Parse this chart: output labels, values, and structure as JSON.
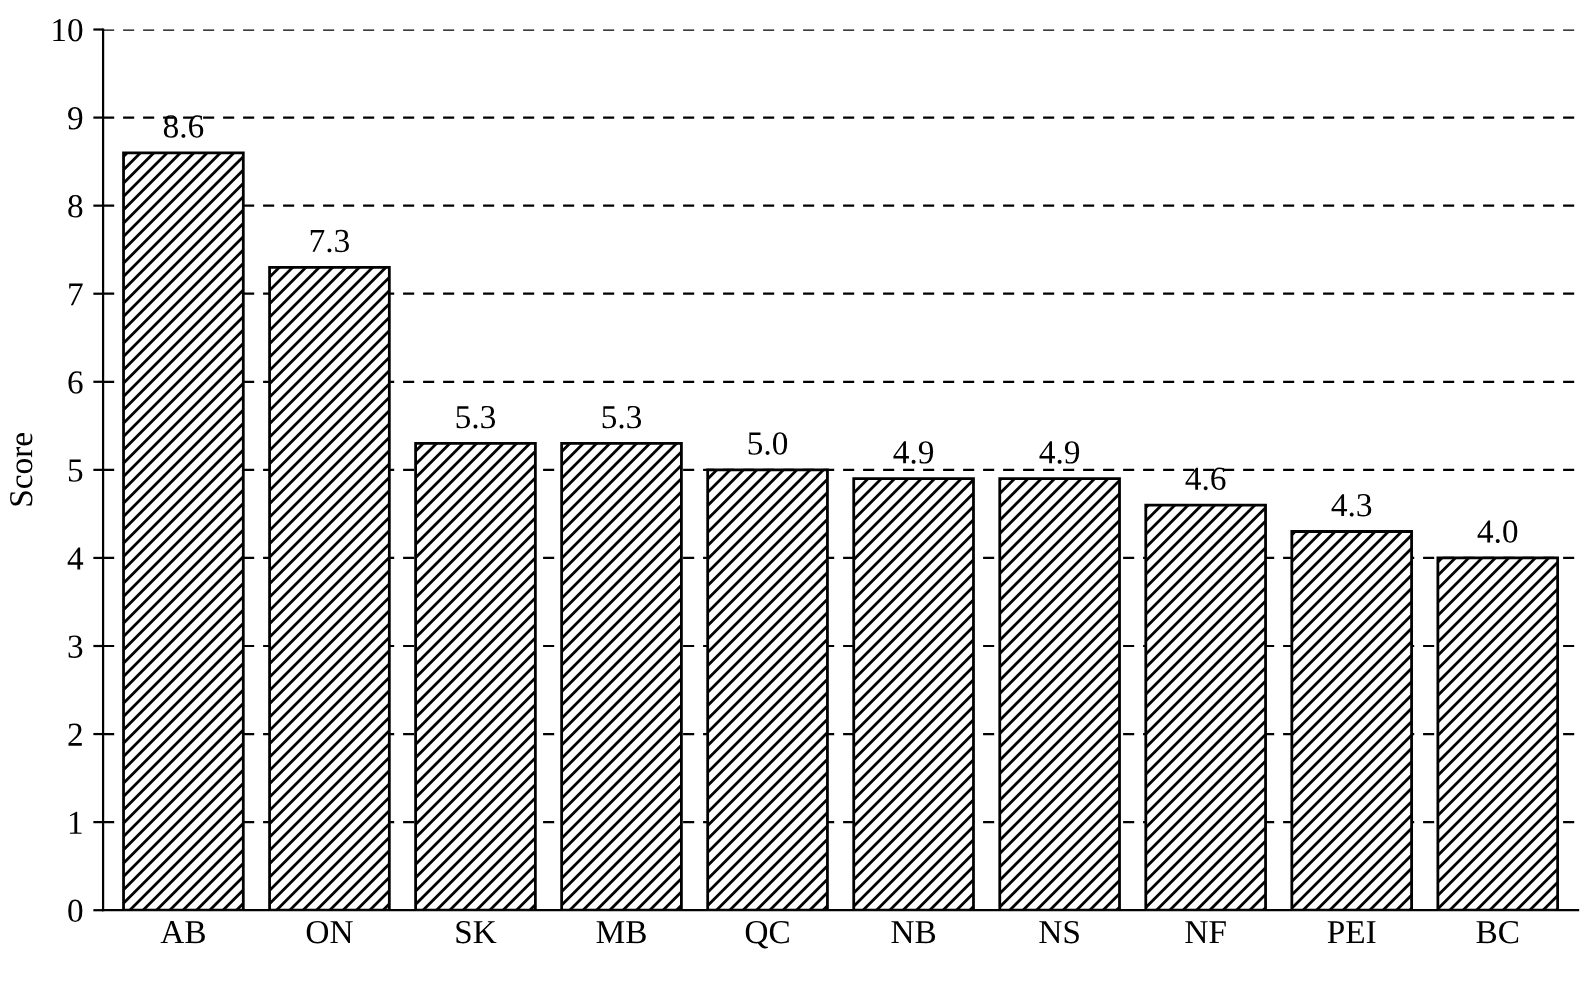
{
  "chart_data": {
    "type": "bar",
    "ylabel": "Score",
    "categories": [
      "AB",
      "ON",
      "SK",
      "MB",
      "QC",
      "NB",
      "NS",
      "NF",
      "PEI",
      "BC"
    ],
    "values": [
      8.6,
      7.3,
      5.3,
      5.3,
      5.0,
      4.9,
      4.9,
      4.6,
      4.3,
      4.0
    ],
    "value_labels": [
      "8.6",
      "7.3",
      "5.3",
      "5.3",
      "5.0",
      "4.9",
      "4.9",
      "4.6",
      "4.3",
      "4.0"
    ],
    "color": "#000000",
    "ylim": [
      0,
      10
    ],
    "yticks": [
      0,
      1,
      2,
      3,
      4,
      5,
      6,
      7,
      8,
      9,
      10
    ],
    "grid": "y",
    "line_style": "dashed"
  }
}
